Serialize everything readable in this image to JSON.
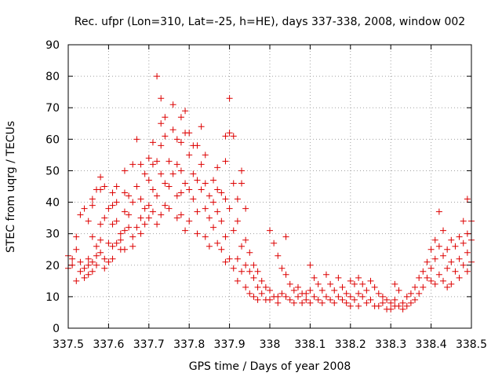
{
  "chart_data": {
    "type": "scatter",
    "title": "Rec. ufpr (Lon=310, Lat=-25, h=HE), days 337-338, 2008, window 002",
    "xlabel": "GPS time / Days of year 2008",
    "ylabel": "STEC from uqrg / TECUs",
    "xlim": [
      337.5,
      338.5
    ],
    "ylim": [
      0,
      90
    ],
    "xticks": [
      337.5,
      337.6,
      337.7,
      337.8,
      337.9,
      338.0,
      338.1,
      338.2,
      338.3,
      338.4,
      338.5
    ],
    "xtick_labels": [
      "337.5",
      "337.6",
      "337.7",
      "337.8",
      "337.9",
      "338",
      "338.1",
      "338.2",
      "338.3",
      "338.4",
      "338.5"
    ],
    "yticks": [
      0,
      10,
      20,
      30,
      40,
      50,
      60,
      70,
      80,
      90
    ],
    "ytick_labels": [
      "0",
      "10",
      "20",
      "30",
      "40",
      "50",
      "60",
      "70",
      "80",
      "90"
    ],
    "grid": true,
    "legend": "none",
    "marker": "+",
    "color": "#dd0000",
    "series": [
      {
        "name": "STEC",
        "points": [
          [
            337.5,
            23
          ],
          [
            337.5,
            19
          ],
          [
            337.51,
            22
          ],
          [
            337.51,
            20
          ],
          [
            337.52,
            29
          ],
          [
            337.52,
            25
          ],
          [
            337.52,
            15
          ],
          [
            337.53,
            36
          ],
          [
            337.53,
            21
          ],
          [
            337.53,
            18
          ],
          [
            337.54,
            19
          ],
          [
            337.54,
            16
          ],
          [
            337.54,
            38
          ],
          [
            337.55,
            20
          ],
          [
            337.55,
            34
          ],
          [
            337.55,
            22
          ],
          [
            337.55,
            17
          ],
          [
            337.56,
            39
          ],
          [
            337.56,
            41
          ],
          [
            337.56,
            29
          ],
          [
            337.56,
            21
          ],
          [
            337.56,
            18
          ],
          [
            337.57,
            26
          ],
          [
            337.57,
            23
          ],
          [
            337.57,
            20
          ],
          [
            337.57,
            44
          ],
          [
            337.58,
            48
          ],
          [
            337.58,
            44
          ],
          [
            337.58,
            33
          ],
          [
            337.58,
            28
          ],
          [
            337.58,
            24
          ],
          [
            337.59,
            22
          ],
          [
            337.59,
            19
          ],
          [
            337.59,
            45
          ],
          [
            337.59,
            35
          ],
          [
            337.6,
            38
          ],
          [
            337.6,
            27
          ],
          [
            337.6,
            21
          ],
          [
            337.61,
            43
          ],
          [
            337.61,
            33
          ],
          [
            337.61,
            26
          ],
          [
            337.61,
            22
          ],
          [
            337.61,
            39
          ],
          [
            337.62,
            45
          ],
          [
            337.62,
            40
          ],
          [
            337.62,
            34
          ],
          [
            337.62,
            27
          ],
          [
            337.63,
            28
          ],
          [
            337.63,
            30
          ],
          [
            337.63,
            25
          ],
          [
            337.64,
            50
          ],
          [
            337.64,
            43
          ],
          [
            337.64,
            37
          ],
          [
            337.64,
            31
          ],
          [
            337.64,
            25
          ],
          [
            337.65,
            42
          ],
          [
            337.65,
            36
          ],
          [
            337.65,
            32
          ],
          [
            337.66,
            52
          ],
          [
            337.66,
            40
          ],
          [
            337.66,
            29
          ],
          [
            337.66,
            26
          ],
          [
            337.67,
            60
          ],
          [
            337.67,
            45
          ],
          [
            337.67,
            32
          ],
          [
            337.68,
            52
          ],
          [
            337.68,
            41
          ],
          [
            337.68,
            35
          ],
          [
            337.68,
            30
          ],
          [
            337.69,
            49
          ],
          [
            337.69,
            38
          ],
          [
            337.69,
            33
          ],
          [
            337.7,
            54
          ],
          [
            337.7,
            47
          ],
          [
            337.7,
            39
          ],
          [
            337.7,
            35
          ],
          [
            337.71,
            59
          ],
          [
            337.71,
            52
          ],
          [
            337.71,
            44
          ],
          [
            337.71,
            37
          ],
          [
            337.72,
            80
          ],
          [
            337.72,
            53
          ],
          [
            337.72,
            42
          ],
          [
            337.72,
            33
          ],
          [
            337.73,
            73
          ],
          [
            337.73,
            65
          ],
          [
            337.73,
            58
          ],
          [
            337.73,
            49
          ],
          [
            337.73,
            36
          ],
          [
            337.74,
            67
          ],
          [
            337.74,
            61
          ],
          [
            337.74,
            46
          ],
          [
            337.74,
            39
          ],
          [
            337.75,
            53
          ],
          [
            337.75,
            45
          ],
          [
            337.75,
            38
          ],
          [
            337.76,
            71
          ],
          [
            337.76,
            63
          ],
          [
            337.76,
            49
          ],
          [
            337.77,
            60
          ],
          [
            337.77,
            52
          ],
          [
            337.77,
            42
          ],
          [
            337.77,
            35
          ],
          [
            337.78,
            67
          ],
          [
            337.78,
            59
          ],
          [
            337.78,
            50
          ],
          [
            337.78,
            43
          ],
          [
            337.78,
            36
          ],
          [
            337.79,
            69
          ],
          [
            337.79,
            62
          ],
          [
            337.79,
            46
          ],
          [
            337.79,
            31
          ],
          [
            337.8,
            62
          ],
          [
            337.8,
            55
          ],
          [
            337.8,
            44
          ],
          [
            337.8,
            34
          ],
          [
            337.81,
            58
          ],
          [
            337.81,
            49
          ],
          [
            337.81,
            41
          ],
          [
            337.82,
            58
          ],
          [
            337.82,
            47
          ],
          [
            337.82,
            37
          ],
          [
            337.82,
            30
          ],
          [
            337.83,
            64
          ],
          [
            337.83,
            52
          ],
          [
            337.83,
            44
          ],
          [
            337.84,
            55
          ],
          [
            337.84,
            46
          ],
          [
            337.84,
            38
          ],
          [
            337.84,
            29
          ],
          [
            337.85,
            42
          ],
          [
            337.85,
            35
          ],
          [
            337.85,
            26
          ],
          [
            337.86,
            47
          ],
          [
            337.86,
            40
          ],
          [
            337.86,
            32
          ],
          [
            337.87,
            51
          ],
          [
            337.87,
            44
          ],
          [
            337.87,
            37
          ],
          [
            337.87,
            27
          ],
          [
            337.88,
            43
          ],
          [
            337.88,
            34
          ],
          [
            337.88,
            25
          ],
          [
            337.89,
            61
          ],
          [
            337.89,
            53
          ],
          [
            337.89,
            41
          ],
          [
            337.89,
            29
          ],
          [
            337.89,
            21
          ],
          [
            337.9,
            73
          ],
          [
            337.9,
            62
          ],
          [
            337.9,
            38
          ],
          [
            337.9,
            22
          ],
          [
            337.91,
            61
          ],
          [
            337.91,
            46
          ],
          [
            337.91,
            31
          ],
          [
            337.91,
            19
          ],
          [
            337.92,
            41
          ],
          [
            337.92,
            34
          ],
          [
            337.92,
            22
          ],
          [
            337.92,
            15
          ],
          [
            337.93,
            50
          ],
          [
            337.93,
            46
          ],
          [
            337.93,
            26
          ],
          [
            337.93,
            18
          ],
          [
            337.94,
            38
          ],
          [
            337.94,
            28
          ],
          [
            337.94,
            20
          ],
          [
            337.94,
            13
          ],
          [
            337.95,
            24
          ],
          [
            337.95,
            18
          ],
          [
            337.95,
            11
          ],
          [
            337.96,
            20
          ],
          [
            337.96,
            16
          ],
          [
            337.96,
            10
          ],
          [
            337.97,
            18
          ],
          [
            337.97,
            13
          ],
          [
            337.97,
            9
          ],
          [
            337.98,
            15
          ],
          [
            337.98,
            11
          ],
          [
            337.99,
            13
          ],
          [
            337.99,
            9
          ],
          [
            338.0,
            31
          ],
          [
            338.0,
            12
          ],
          [
            338.0,
            9
          ],
          [
            338.01,
            27
          ],
          [
            338.01,
            10
          ],
          [
            338.02,
            23
          ],
          [
            338.02,
            10
          ],
          [
            338.02,
            8
          ],
          [
            338.03,
            19
          ],
          [
            338.03,
            11
          ],
          [
            338.04,
            29
          ],
          [
            338.04,
            17
          ],
          [
            338.04,
            10
          ],
          [
            338.05,
            14
          ],
          [
            338.05,
            9
          ],
          [
            338.06,
            12
          ],
          [
            338.06,
            8
          ],
          [
            338.07,
            13
          ],
          [
            338.07,
            10
          ],
          [
            338.08,
            11
          ],
          [
            338.08,
            8
          ],
          [
            338.09,
            11
          ],
          [
            338.09,
            9
          ],
          [
            338.1,
            20
          ],
          [
            338.1,
            12
          ],
          [
            338.1,
            8
          ],
          [
            338.11,
            16
          ],
          [
            338.11,
            10
          ],
          [
            338.12,
            14
          ],
          [
            338.12,
            9
          ],
          [
            338.13,
            12
          ],
          [
            338.13,
            8
          ],
          [
            338.14,
            17
          ],
          [
            338.14,
            10
          ],
          [
            338.15,
            14
          ],
          [
            338.15,
            9
          ],
          [
            338.16,
            12
          ],
          [
            338.16,
            8
          ],
          [
            338.17,
            16
          ],
          [
            338.17,
            10
          ],
          [
            338.18,
            13
          ],
          [
            338.18,
            9
          ],
          [
            338.19,
            11
          ],
          [
            338.19,
            8
          ],
          [
            338.2,
            15
          ],
          [
            338.2,
            10
          ],
          [
            338.2,
            7
          ],
          [
            338.21,
            14
          ],
          [
            338.21,
            9
          ],
          [
            338.22,
            16
          ],
          [
            338.22,
            11
          ],
          [
            338.22,
            7
          ],
          [
            338.23,
            14
          ],
          [
            338.23,
            10
          ],
          [
            338.24,
            12
          ],
          [
            338.24,
            8
          ],
          [
            338.25,
            15
          ],
          [
            338.25,
            9
          ],
          [
            338.26,
            13
          ],
          [
            338.26,
            7
          ],
          [
            338.27,
            11
          ],
          [
            338.27,
            7
          ],
          [
            338.28,
            10
          ],
          [
            338.28,
            8
          ],
          [
            338.29,
            9
          ],
          [
            338.29,
            6
          ],
          [
            338.3,
            8
          ],
          [
            338.3,
            6
          ],
          [
            338.31,
            14
          ],
          [
            338.31,
            9
          ],
          [
            338.31,
            7
          ],
          [
            338.32,
            12
          ],
          [
            338.32,
            7
          ],
          [
            338.33,
            8
          ],
          [
            338.33,
            6
          ],
          [
            338.34,
            10
          ],
          [
            338.34,
            7
          ],
          [
            338.35,
            11
          ],
          [
            338.35,
            8
          ],
          [
            338.36,
            13
          ],
          [
            338.36,
            9
          ],
          [
            338.37,
            16
          ],
          [
            338.37,
            11
          ],
          [
            338.38,
            18
          ],
          [
            338.38,
            13
          ],
          [
            338.39,
            21
          ],
          [
            338.39,
            16
          ],
          [
            338.4,
            25
          ],
          [
            338.4,
            19
          ],
          [
            338.4,
            15
          ],
          [
            338.41,
            28
          ],
          [
            338.41,
            22
          ],
          [
            338.41,
            14
          ],
          [
            338.42,
            37
          ],
          [
            338.42,
            26
          ],
          [
            338.42,
            17
          ],
          [
            338.43,
            31
          ],
          [
            338.43,
            23
          ],
          [
            338.43,
            15
          ],
          [
            338.44,
            25
          ],
          [
            338.44,
            19
          ],
          [
            338.44,
            13
          ],
          [
            338.45,
            28
          ],
          [
            338.45,
            21
          ],
          [
            338.45,
            14
          ],
          [
            338.46,
            26
          ],
          [
            338.46,
            18
          ],
          [
            338.47,
            29
          ],
          [
            338.47,
            22
          ],
          [
            338.47,
            16
          ],
          [
            338.48,
            34
          ],
          [
            338.48,
            27
          ],
          [
            338.48,
            20
          ],
          [
            338.49,
            41
          ],
          [
            338.49,
            30
          ],
          [
            338.49,
            24
          ],
          [
            338.49,
            18
          ],
          [
            338.5,
            34
          ],
          [
            338.5,
            28
          ],
          [
            338.5,
            21
          ]
        ]
      }
    ]
  }
}
